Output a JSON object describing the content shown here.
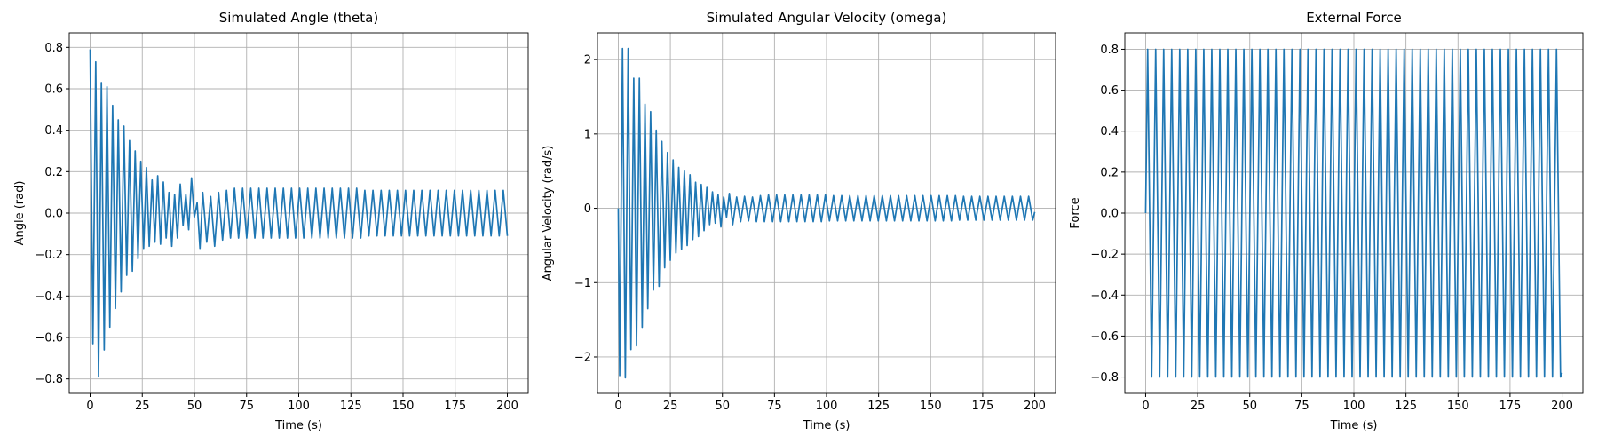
{
  "chart_data": [
    {
      "type": "line",
      "title": "Simulated Angle (theta)",
      "xlabel": "Time (s)",
      "ylabel": "Angle (rad)",
      "color": "#1f77b4",
      "grid": true,
      "xlim": [
        -10,
        210
      ],
      "xticks": [
        0,
        25,
        50,
        75,
        100,
        125,
        150,
        175,
        200
      ],
      "ylim": [
        -0.87,
        0.87
      ],
      "yticks": [
        {
          "value": -0.8,
          "label": "−0.8"
        },
        {
          "value": -0.6,
          "label": "−0.6"
        },
        {
          "value": -0.4,
          "label": "−0.4"
        },
        {
          "value": -0.2,
          "label": "−0.2"
        },
        {
          "value": 0,
          "label": "0.0"
        },
        {
          "value": 0.2,
          "label": "0.2"
        },
        {
          "value": 0.4,
          "label": "0.4"
        },
        {
          "value": 0.6,
          "label": "0.6"
        },
        {
          "value": 0.8,
          "label": "0.8"
        }
      ],
      "x": [
        0,
        1.35,
        2.7,
        4.05,
        5.4,
        6.75,
        8.1,
        9.45,
        10.8,
        12.15,
        13.5,
        14.85,
        16.2,
        17.55,
        18.9,
        20.25,
        21.6,
        22.95,
        24.3,
        25.65,
        27.0,
        28.35,
        29.7,
        31.05,
        32.4,
        33.75,
        35.1,
        36.45,
        37.8,
        39.15,
        40.5,
        41.85,
        43.2,
        44.55,
        45.9,
        47.25,
        48.6,
        49.95,
        51.3,
        52.65,
        54.0,
        55.9,
        57.8,
        59.7,
        61.6,
        63.5,
        65.4,
        67.3,
        69.2,
        71.15,
        73.1,
        75.06,
        77.01,
        78.96,
        80.91,
        82.87,
        84.82,
        86.77,
        88.72,
        90.67,
        92.63,
        94.58,
        96.53,
        98.48,
        100.44,
        102.39,
        104.34,
        106.29,
        108.24,
        110.2,
        112.15,
        114.1,
        116.05,
        118.01,
        119.96,
        121.91,
        123.86,
        125.81,
        127.77,
        129.72,
        131.67,
        133.62,
        135.57,
        137.53,
        139.48,
        141.43,
        143.38,
        145.34,
        147.29,
        149.24,
        151.19,
        153.14,
        155.1,
        157.05,
        159.0,
        160.95,
        162.91,
        164.86,
        166.81,
        168.76,
        170.71,
        172.67,
        174.62,
        176.57,
        178.52,
        180.48,
        182.43,
        184.38,
        186.33,
        188.28,
        190.24,
        192.19,
        194.14,
        196.09,
        198.05,
        200.0
      ],
      "values": [
        0.79,
        -0.63,
        0.73,
        -0.79,
        0.63,
        -0.66,
        0.61,
        -0.55,
        0.52,
        -0.46,
        0.45,
        -0.38,
        0.42,
        -0.3,
        0.35,
        -0.28,
        0.3,
        -0.22,
        0.25,
        -0.17,
        0.22,
        -0.16,
        0.16,
        -0.14,
        0.18,
        -0.15,
        0.15,
        -0.12,
        0.1,
        -0.16,
        0.09,
        -0.12,
        0.14,
        -0.06,
        0.09,
        -0.08,
        0.17,
        -0.02,
        0.05,
        -0.17,
        0.1,
        -0.14,
        0.08,
        -0.16,
        0.1,
        -0.13,
        0.11,
        -0.12,
        0.12,
        -0.12,
        0.12,
        -0.12,
        0.12,
        -0.12,
        0.12,
        -0.12,
        0.12,
        -0.12,
        0.12,
        -0.12,
        0.12,
        -0.12,
        0.12,
        -0.12,
        0.12,
        -0.12,
        0.12,
        -0.12,
        0.12,
        -0.12,
        0.12,
        -0.12,
        0.12,
        -0.12,
        0.12,
        -0.12,
        0.12,
        -0.12,
        0.12,
        -0.12,
        0.11,
        -0.11,
        0.11,
        -0.11,
        0.11,
        -0.11,
        0.11,
        -0.11,
        0.11,
        -0.11,
        0.11,
        -0.11,
        0.11,
        -0.11,
        0.11,
        -0.11,
        0.11,
        -0.11,
        0.11,
        -0.11,
        0.11,
        -0.11,
        0.11,
        -0.11,
        0.11,
        -0.11,
        0.11,
        -0.11,
        0.11,
        -0.11,
        0.11,
        -0.11,
        0.11,
        -0.11,
        0.11,
        -0.11
      ]
    },
    {
      "type": "line",
      "title": "Simulated Angular Velocity (omega)",
      "xlabel": "Time (s)",
      "ylabel": "Angular Velocity (rad/s)",
      "color": "#1f77b4",
      "grid": true,
      "xlim": [
        -10,
        210
      ],
      "xticks": [
        0,
        25,
        50,
        75,
        100,
        125,
        150,
        175,
        200
      ],
      "ylim": [
        -2.49,
        2.36
      ],
      "yticks": [
        {
          "value": -2,
          "label": "−2"
        },
        {
          "value": -1,
          "label": "−1"
        },
        0,
        1,
        2
      ],
      "x": [
        0,
        0.68,
        2.03,
        3.38,
        4.73,
        6.08,
        7.43,
        8.78,
        10.13,
        11.48,
        12.83,
        14.18,
        15.53,
        16.88,
        18.23,
        19.58,
        20.93,
        22.28,
        23.63,
        24.98,
        26.33,
        27.68,
        29.03,
        30.38,
        31.73,
        33.08,
        34.43,
        35.78,
        37.13,
        38.48,
        39.83,
        41.18,
        42.53,
        43.88,
        45.23,
        46.58,
        47.93,
        49.28,
        50.63,
        51.98,
        53.33,
        54.95,
        56.85,
        58.75,
        60.65,
        62.55,
        64.45,
        66.35,
        68.25,
        70.18,
        72.13,
        74.08,
        76.03,
        77.99,
        79.94,
        81.89,
        83.84,
        85.79,
        87.75,
        89.7,
        91.65,
        93.6,
        95.56,
        97.51,
        99.46,
        101.41,
        103.36,
        105.32,
        107.27,
        109.22,
        111.17,
        113.12,
        115.08,
        117.03,
        118.98,
        120.93,
        122.89,
        124.84,
        126.79,
        128.74,
        130.69,
        132.65,
        134.6,
        136.55,
        138.5,
        140.46,
        142.41,
        144.36,
        146.31,
        148.26,
        150.22,
        152.17,
        154.12,
        156.07,
        158.02,
        159.98,
        161.93,
        163.88,
        165.83,
        167.79,
        169.74,
        171.69,
        173.64,
        175.59,
        177.55,
        179.5,
        181.45,
        183.4,
        185.36,
        187.31,
        189.26,
        191.21,
        193.16,
        195.12,
        197.07,
        199.02,
        200
      ],
      "values": [
        0,
        -2.25,
        2.15,
        -2.28,
        2.15,
        -1.9,
        1.75,
        -1.85,
        1.75,
        -1.6,
        1.4,
        -1.35,
        1.3,
        -1.1,
        1.05,
        -1.05,
        0.9,
        -0.8,
        0.75,
        -0.7,
        0.65,
        -0.6,
        0.55,
        -0.55,
        0.5,
        -0.5,
        0.45,
        -0.42,
        0.35,
        -0.38,
        0.32,
        -0.3,
        0.28,
        -0.22,
        0.22,
        -0.2,
        0.18,
        -0.25,
        0.15,
        -0.12,
        0.2,
        -0.22,
        0.15,
        -0.18,
        0.16,
        -0.17,
        0.15,
        -0.18,
        0.17,
        -0.18,
        0.18,
        -0.18,
        0.18,
        -0.18,
        0.18,
        -0.18,
        0.18,
        -0.18,
        0.18,
        -0.18,
        0.18,
        -0.18,
        0.18,
        -0.18,
        0.18,
        -0.17,
        0.17,
        -0.17,
        0.17,
        -0.17,
        0.17,
        -0.17,
        0.17,
        -0.17,
        0.17,
        -0.17,
        0.17,
        -0.17,
        0.17,
        -0.17,
        0.17,
        -0.17,
        0.17,
        -0.17,
        0.17,
        -0.17,
        0.17,
        -0.17,
        0.17,
        -0.17,
        0.17,
        -0.17,
        0.17,
        -0.17,
        0.17,
        -0.17,
        0.17,
        -0.16,
        0.16,
        -0.16,
        0.16,
        -0.16,
        0.16,
        -0.16,
        0.16,
        -0.16,
        0.16,
        -0.16,
        0.16,
        -0.16,
        0.16,
        -0.16,
        0.16,
        -0.16,
        0.16,
        -0.16,
        -0.05
      ]
    },
    {
      "type": "line",
      "title": "External Force",
      "xlabel": "Time (s)",
      "ylabel": "Force",
      "color": "#1f77b4",
      "grid": true,
      "xlim": [
        -10,
        210
      ],
      "xticks": [
        0,
        25,
        50,
        75,
        100,
        125,
        150,
        175,
        200
      ],
      "ylim": [
        -0.88,
        0.88
      ],
      "yticks": [
        {
          "value": -0.8,
          "label": "−0.8"
        },
        {
          "value": -0.6,
          "label": "−0.6"
        },
        {
          "value": -0.4,
          "label": "−0.4"
        },
        {
          "value": -0.2,
          "label": "−0.2"
        },
        {
          "value": 0,
          "label": "0.0"
        },
        {
          "value": 0.2,
          "label": "0.2"
        },
        {
          "value": 0.4,
          "label": "0.4"
        },
        {
          "value": 0.6,
          "label": "0.6"
        },
        {
          "value": 0.8,
          "label": "0.8"
        }
      ],
      "x": [
        0,
        0.96,
        2.89,
        4.81,
        6.74,
        8.66,
        10.59,
        12.51,
        14.44,
        16.36,
        18.29,
        20.21,
        22.14,
        24.06,
        25.99,
        27.91,
        29.84,
        31.76,
        33.69,
        35.61,
        37.54,
        39.46,
        41.39,
        43.31,
        45.24,
        47.16,
        49.09,
        51.01,
        52.94,
        54.86,
        56.79,
        58.71,
        60.64,
        62.56,
        64.49,
        66.41,
        68.34,
        70.26,
        72.19,
        74.11,
        76.04,
        77.96,
        79.89,
        81.81,
        83.74,
        85.66,
        87.59,
        89.51,
        91.44,
        93.36,
        95.29,
        97.21,
        99.14,
        101.06,
        102.99,
        104.91,
        106.84,
        108.76,
        110.69,
        112.61,
        114.54,
        116.46,
        118.39,
        120.31,
        122.24,
        124.16,
        126.09,
        128.01,
        129.94,
        131.86,
        133.79,
        135.71,
        137.64,
        139.56,
        141.49,
        143.41,
        145.34,
        147.26,
        149.19,
        151.11,
        153.04,
        154.96,
        156.89,
        158.81,
        160.74,
        162.66,
        164.59,
        166.51,
        168.44,
        170.36,
        172.29,
        174.21,
        176.14,
        178.06,
        179.99,
        181.91,
        183.84,
        185.76,
        187.69,
        189.61,
        191.54,
        193.46,
        195.39,
        197.31,
        199.24,
        200
      ],
      "values": [
        0,
        0.8,
        -0.8,
        0.8,
        -0.8,
        0.8,
        -0.8,
        0.8,
        -0.8,
        0.8,
        -0.8,
        0.8,
        -0.8,
        0.8,
        -0.8,
        0.8,
        -0.8,
        0.8,
        -0.8,
        0.8,
        -0.8,
        0.8,
        -0.8,
        0.8,
        -0.8,
        0.8,
        -0.8,
        0.8,
        -0.8,
        0.8,
        -0.8,
        0.8,
        -0.8,
        0.8,
        -0.8,
        0.8,
        -0.8,
        0.8,
        -0.8,
        0.8,
        -0.8,
        0.8,
        -0.8,
        0.8,
        -0.8,
        0.8,
        -0.8,
        0.8,
        -0.8,
        0.8,
        -0.8,
        0.8,
        -0.8,
        0.8,
        -0.8,
        0.8,
        -0.8,
        0.8,
        -0.8,
        0.8,
        -0.8,
        0.8,
        -0.8,
        0.8,
        -0.8,
        0.8,
        -0.8,
        0.8,
        -0.8,
        0.8,
        -0.8,
        0.8,
        -0.8,
        0.8,
        -0.8,
        0.8,
        -0.8,
        0.8,
        -0.8,
        0.8,
        -0.8,
        0.8,
        -0.8,
        0.8,
        -0.8,
        0.8,
        -0.8,
        0.8,
        -0.8,
        0.8,
        -0.8,
        0.8,
        -0.8,
        0.8,
        -0.8,
        0.8,
        -0.8,
        0.8,
        -0.8,
        0.8,
        -0.8,
        0.8,
        -0.8,
        0.8,
        -0.8,
        -0.78
      ]
    }
  ]
}
